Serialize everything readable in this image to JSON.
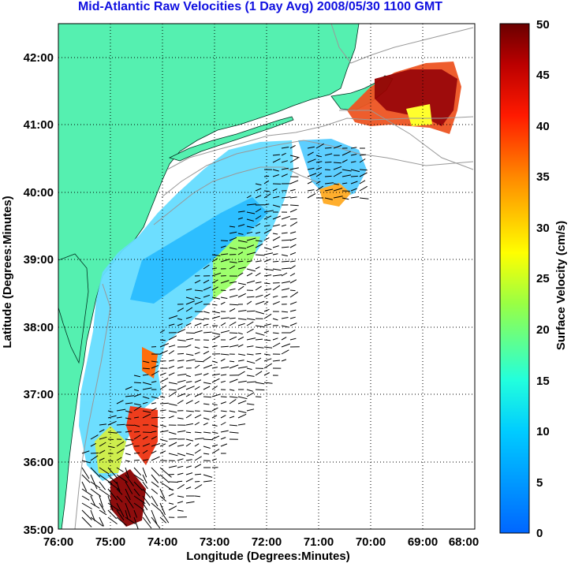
{
  "title": "Mid-Atlantic Raw Velocities (1 Day Avg) 2008/05/30 1100 GMT",
  "map": {
    "xlabel": "Longitude (Degrees:Minutes)",
    "ylabel": "Latitude (Degrees:Minutes)",
    "x_ticks": [
      "76:00",
      "75:00",
      "74:00",
      "73:00",
      "72:00",
      "71:00",
      "70:00",
      "69:00",
      "68:00"
    ],
    "y_ticks": [
      "35:00",
      "36:00",
      "37:00",
      "38:00",
      "39:00",
      "40:00",
      "41:00",
      "42:00"
    ],
    "lon_range": [
      -76,
      -68
    ],
    "lat_range": [
      35,
      42.5
    ],
    "land_color": "#55f0b0",
    "grid": "dotted"
  },
  "colorbar": {
    "label": "Surface Velocity (cm/s)",
    "ticks": [
      "0",
      "5",
      "10",
      "15",
      "20",
      "25",
      "30",
      "35",
      "40",
      "45",
      "50"
    ],
    "range": [
      0,
      50
    ],
    "colormap": "jet"
  }
}
